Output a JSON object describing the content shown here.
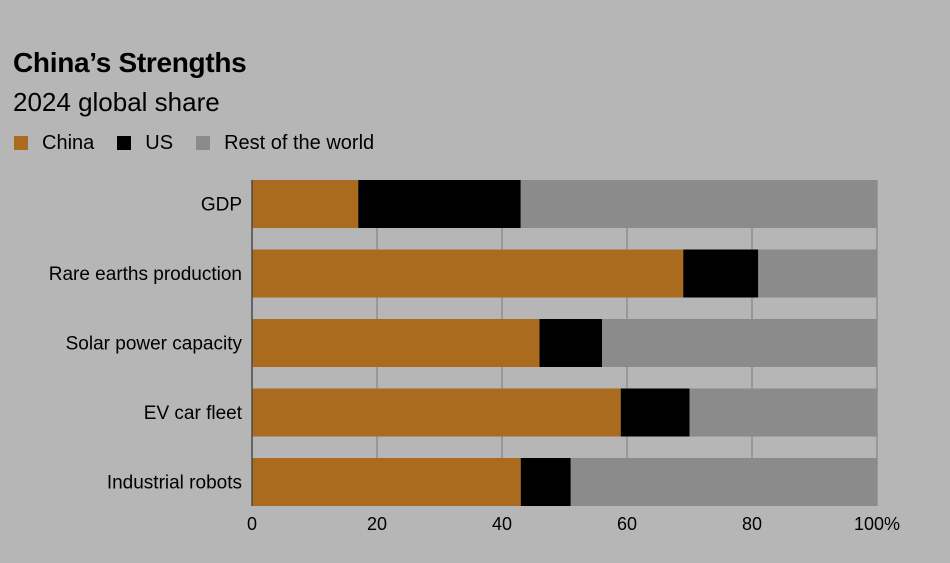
{
  "chart_data": {
    "type": "bar",
    "orientation": "horizontal",
    "stacked": true,
    "title": "China’s Strengths",
    "subtitle": "2024 global share",
    "categories": [
      "GDP",
      "Rare earths production",
      "Solar power capacity",
      "EV car fleet",
      "Industrial robots"
    ],
    "series": [
      {
        "name": "China",
        "color": "#ab6b1f",
        "values": [
          17,
          69,
          46,
          59,
          43
        ]
      },
      {
        "name": "US",
        "color": "#000000",
        "values": [
          26,
          12,
          10,
          11,
          8
        ]
      },
      {
        "name": "Rest of the world",
        "color": "#8b8b8b",
        "values": [
          57,
          19,
          44,
          30,
          49
        ]
      }
    ],
    "xlim": [
      0,
      100
    ],
    "xticks": [
      0,
      20,
      40,
      60,
      80,
      100
    ],
    "xtick_labels": [
      "0",
      "20",
      "40",
      "60",
      "80",
      "100%"
    ],
    "xlabel": "",
    "ylabel": "",
    "grid": true,
    "legend_position": "top-left"
  }
}
